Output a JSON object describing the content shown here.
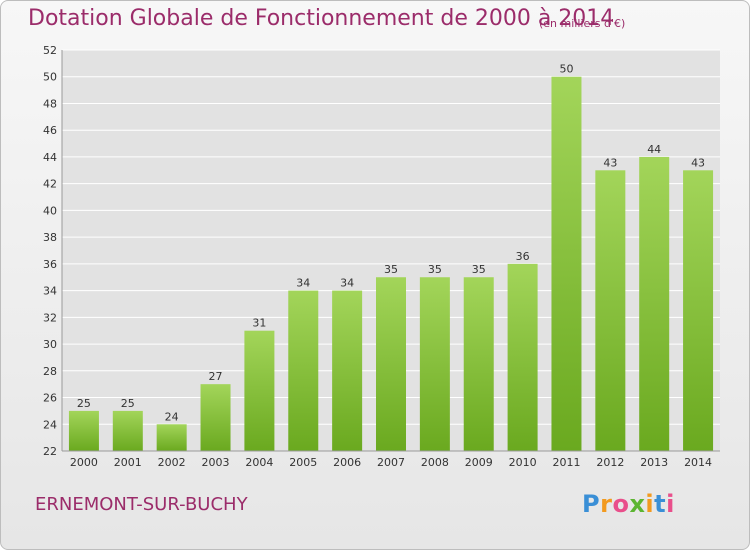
{
  "title": "Dotation Globale de Fonctionnement de 2000 à 2014",
  "subtitle": "(en milliers d'€)",
  "commune": "ERNEMONT-SUR-BUCHY",
  "logo": {
    "letters": [
      "P",
      "r",
      "o",
      "x",
      "i",
      "t",
      "i"
    ],
    "colors": [
      "#3a8fd6",
      "#f29a1f",
      "#e94f8b",
      "#5cb531",
      "#f29a1f",
      "#3a8fd6",
      "#e94f8b"
    ]
  },
  "colors": {
    "bar_top": "#a3d55a",
    "bar_bottom": "#6aa91f",
    "text": "#9b2c6a",
    "grid": "#ffffff",
    "axis_text": "#333333"
  },
  "chart_data": {
    "type": "bar",
    "categories": [
      "2000",
      "2001",
      "2002",
      "2003",
      "2004",
      "2005",
      "2006",
      "2007",
      "2008",
      "2009",
      "2010",
      "2011",
      "2012",
      "2013",
      "2014"
    ],
    "values": [
      25,
      25,
      24,
      27,
      31,
      34,
      34,
      35,
      35,
      35,
      36,
      50,
      43,
      44,
      43
    ],
    "title": "Dotation Globale de Fonctionnement de 2000 à 2014",
    "ylim": [
      22,
      52
    ],
    "yticks": [
      22,
      24,
      26,
      28,
      30,
      32,
      34,
      36,
      38,
      40,
      42,
      44,
      46,
      48,
      50,
      52
    ],
    "grid": true
  }
}
